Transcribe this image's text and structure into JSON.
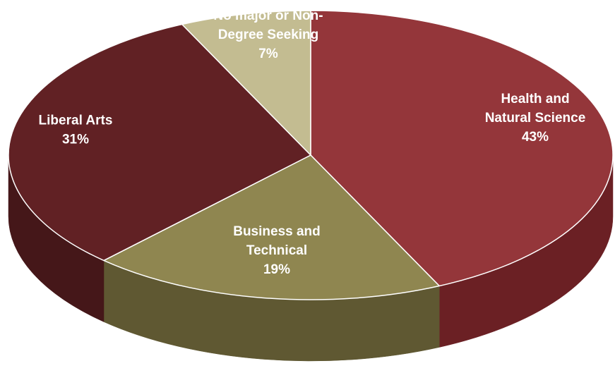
{
  "chart_data": {
    "type": "pie",
    "style": "3d",
    "slices": [
      {
        "category": "Health and Natural Science",
        "value": 43,
        "label_lines": [
          "Health and",
          "Natural Science",
          "43%"
        ],
        "color": "#94363a",
        "side_color": "#6b2024"
      },
      {
        "category": "Business and Technical",
        "value": 19,
        "label_lines": [
          "Business and",
          "Technical",
          "19%"
        ],
        "color": "#8f8650",
        "side_color": "#5f5832"
      },
      {
        "category": "Liberal Arts",
        "value": 31,
        "label_lines": [
          "Liberal Arts",
          "31%"
        ],
        "color": "#612124",
        "side_color": "#451719"
      },
      {
        "category": "No major or Non-Degree Seeking",
        "value": 7,
        "label_lines": [
          "No major or Non-",
          "Degree Seeking",
          "7%"
        ],
        "color": "#c3bc91",
        "side_color": "#8f8864"
      }
    ]
  }
}
